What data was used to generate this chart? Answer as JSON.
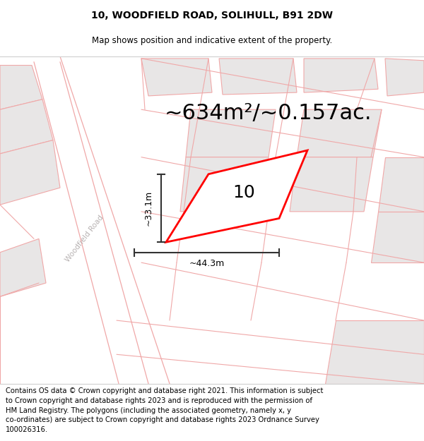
{
  "title": "10, WOODFIELD ROAD, SOLIHULL, B91 2DW",
  "subtitle": "Map shows position and indicative extent of the property.",
  "area_text": "~634m²/~0.157ac.",
  "label_number": "10",
  "dim_width": "~44.3m",
  "dim_height": "~33.1m",
  "road_label": "Woodfield Road",
  "footer": "Contains OS data © Crown copyright and database right 2021. This information is subject\nto Crown copyright and database rights 2023 and is reproduced with the permission of\nHM Land Registry. The polygons (including the associated geometry, namely x, y\nco-ordinates) are subject to Crown copyright and database rights 2023 Ordnance Survey\n100026316.",
  "map_bg": "#ffffff",
  "block_fill": "#e8e6e6",
  "block_edge": "#f0a8a8",
  "road_edge": "#f0a8a8",
  "road_fill": "#ffffff",
  "main_fill": "#ffffff",
  "main_edge": "#ff0000",
  "dim_color": "#333333",
  "road_label_color": "#b0aaaa",
  "title_fontsize": 10,
  "subtitle_fontsize": 8.5,
  "area_fontsize": 22,
  "label_fontsize": 18,
  "dim_fontsize": 9,
  "road_label_fontsize": 7.5,
  "footer_fontsize": 7.2
}
